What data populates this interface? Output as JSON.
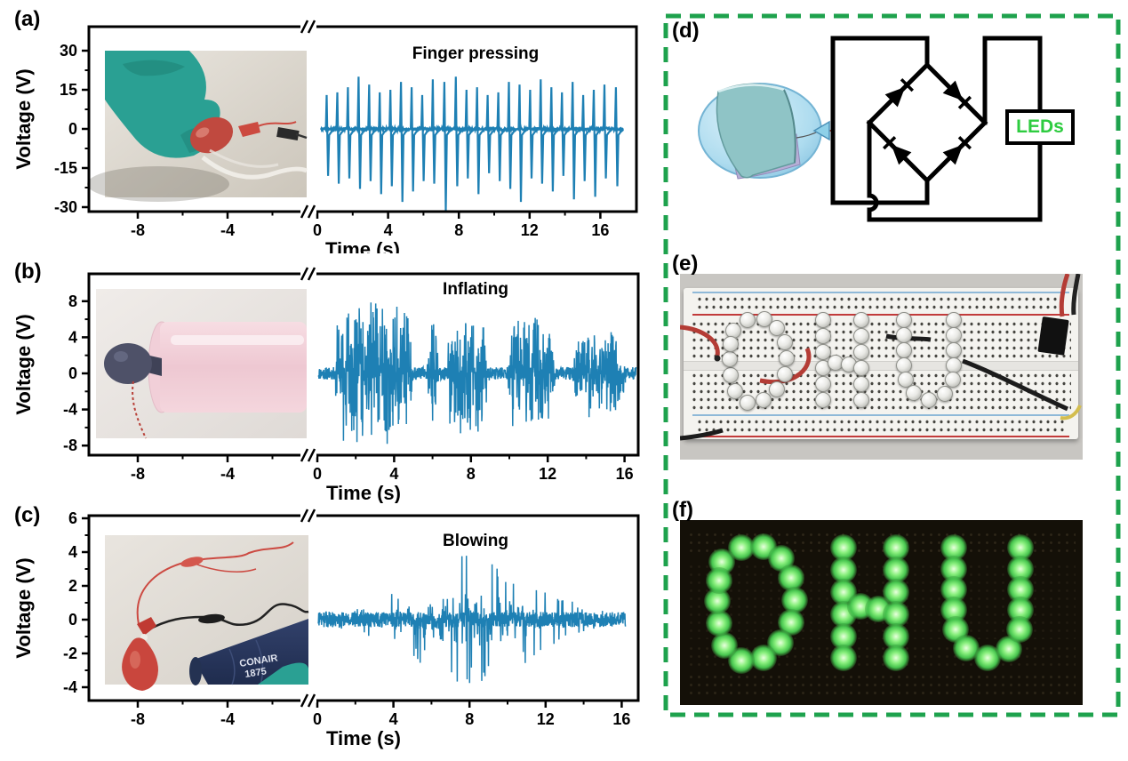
{
  "panels": {
    "a": {
      "label": "(a)",
      "annotation": "Finger pressing"
    },
    "b": {
      "label": "(b)",
      "annotation": "Inflating"
    },
    "c": {
      "label": "(c)",
      "annotation": "Blowing"
    },
    "d": {
      "label": "(d)",
      "leds_label": "LEDs"
    },
    "e": {
      "label": "(e)"
    },
    "f": {
      "label": "(f)"
    }
  },
  "photo_texts": {
    "dryer_brand": "CONAIR",
    "dryer_model": "1875"
  },
  "led_display": {
    "word": "DHU",
    "positions": [
      [
        0.03,
        0.16
      ],
      [
        0.085,
        0.05
      ],
      [
        0.15,
        0.04
      ],
      [
        0.2,
        0.13
      ],
      [
        0.228,
        0.28
      ],
      [
        0.238,
        0.45
      ],
      [
        0.228,
        0.62
      ],
      [
        0.198,
        0.78
      ],
      [
        0.148,
        0.9
      ],
      [
        0.085,
        0.92
      ],
      [
        0.038,
        0.8
      ],
      [
        0.022,
        0.63
      ],
      [
        0.018,
        0.46
      ],
      [
        0.022,
        0.3
      ],
      [
        0.375,
        0.05
      ],
      [
        0.375,
        0.22
      ],
      [
        0.375,
        0.39
      ],
      [
        0.375,
        0.56
      ],
      [
        0.375,
        0.73
      ],
      [
        0.375,
        0.9
      ],
      [
        0.425,
        0.5
      ],
      [
        0.475,
        0.52
      ],
      [
        0.525,
        0.05
      ],
      [
        0.525,
        0.22
      ],
      [
        0.525,
        0.39
      ],
      [
        0.525,
        0.56
      ],
      [
        0.525,
        0.73
      ],
      [
        0.525,
        0.9
      ],
      [
        0.69,
        0.05
      ],
      [
        0.69,
        0.21
      ],
      [
        0.69,
        0.37
      ],
      [
        0.69,
        0.53
      ],
      [
        0.695,
        0.68
      ],
      [
        0.725,
        0.82
      ],
      [
        0.785,
        0.9
      ],
      [
        0.845,
        0.83
      ],
      [
        0.88,
        0.05
      ],
      [
        0.88,
        0.21
      ],
      [
        0.88,
        0.37
      ],
      [
        0.88,
        0.53
      ],
      [
        0.875,
        0.68
      ]
    ]
  },
  "colors": {
    "trace_blue": "#1e80b4",
    "green_border": "#1ea24d",
    "led_text_green": "#2ecc40",
    "glove_teal": "#2aa093",
    "balloon_red": "#c0493f",
    "cylinder_pink": "#f3d2da",
    "dryer_navy": "#2c3a60",
    "led_glow_green": "#6fe86f"
  },
  "chart_data": [
    {
      "panel": "a",
      "type": "line",
      "title": "Finger pressing",
      "xlabel": "Time (s)",
      "ylabel": "Voltage (V)",
      "xticks": [
        -8,
        -4,
        0,
        4,
        8,
        12,
        16
      ],
      "yticks": [
        30,
        15,
        0,
        -15,
        -30
      ],
      "xlim": [
        -10.5,
        18
      ],
      "ylim": [
        -33,
        39
      ],
      "axis_break_at": 0,
      "grid": false,
      "legend": "none",
      "spikes": [
        [
          0.55,
          13,
          -18
        ],
        [
          1.15,
          14,
          -21
        ],
        [
          1.75,
          16,
          -19
        ],
        [
          2.35,
          20,
          -23
        ],
        [
          2.95,
          17,
          -20
        ],
        [
          3.55,
          14,
          -25
        ],
        [
          4.15,
          15,
          -22
        ],
        [
          4.75,
          18,
          -28
        ],
        [
          5.35,
          16,
          -24
        ],
        [
          5.95,
          13,
          -20
        ],
        [
          6.55,
          19,
          -21
        ],
        [
          7.2,
          18,
          -33
        ],
        [
          7.85,
          20,
          -22
        ],
        [
          8.45,
          15,
          -19
        ],
        [
          9.05,
          16,
          -25
        ],
        [
          9.65,
          13,
          -17
        ],
        [
          10.25,
          14,
          -20
        ],
        [
          10.85,
          18,
          -23
        ],
        [
          11.45,
          17,
          -28
        ],
        [
          12.05,
          15,
          -19
        ],
        [
          12.65,
          19,
          -21
        ],
        [
          13.25,
          16,
          -24
        ],
        [
          13.85,
          14,
          -18
        ],
        [
          14.45,
          18,
          -27
        ],
        [
          15.05,
          13,
          -20
        ],
        [
          15.65,
          15,
          -26
        ],
        [
          16.25,
          17,
          -19
        ],
        [
          16.9,
          16,
          -22
        ]
      ]
    },
    {
      "panel": "b",
      "type": "line",
      "title": "Inflating",
      "xlabel": "Time (s)",
      "ylabel": "Voltage (V)",
      "xticks": [
        -8,
        -4,
        0,
        4,
        8,
        12,
        16
      ],
      "yticks": [
        8,
        4,
        0,
        -4,
        -8
      ],
      "xlim": [
        -10.5,
        18
      ],
      "ylim": [
        -9.5,
        10
      ],
      "axis_break_at": 0,
      "grid": false,
      "legend": "none",
      "duration": 16.6,
      "baseline_amp": 0.7,
      "bursts": [
        [
          0.9,
          5.0,
          7.6
        ],
        [
          5.7,
          6.4,
          6.6
        ],
        [
          6.7,
          9.0,
          6.3
        ],
        [
          9.9,
          12.4,
          5.7
        ],
        [
          13.3,
          16.1,
          4.4
        ]
      ]
    },
    {
      "panel": "c",
      "type": "line",
      "title": "Blowing",
      "xlabel": "Time (s)",
      "ylabel": "Voltage (V)",
      "xticks": [
        -8,
        -4,
        0,
        4,
        8,
        12,
        16
      ],
      "yticks": [
        6,
        4,
        2,
        0,
        -2,
        -4
      ],
      "xlim": [
        -10.5,
        18
      ],
      "ylim": [
        -4.9,
        6.2
      ],
      "axis_break_at": 0,
      "grid": false,
      "legend": "none",
      "duration": 16.2,
      "envelope": {
        "center": 8.2,
        "sigma": 2.9,
        "peak_amp": 3.5,
        "base_amp": 0.4
      }
    }
  ]
}
